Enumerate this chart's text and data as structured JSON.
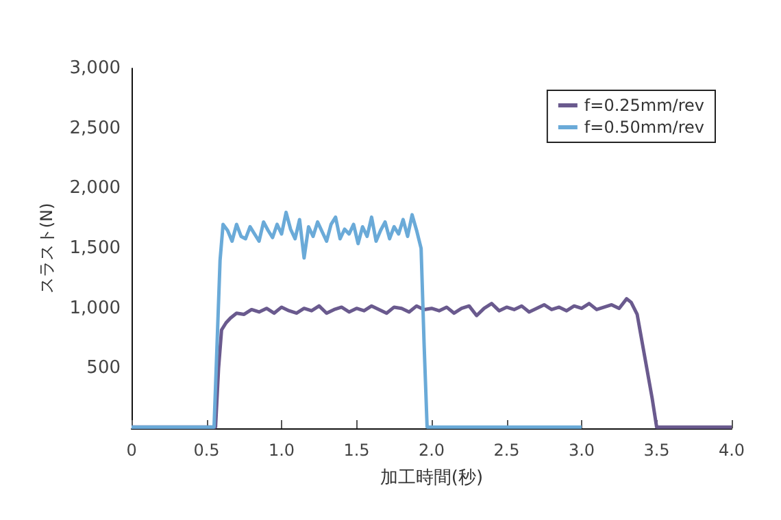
{
  "chart_data": {
    "type": "line",
    "xlabel": "加工時間(秒)",
    "ylabel": "スラスト(N)",
    "xlim": [
      0,
      4.0
    ],
    "xticks": [
      0,
      {
        "value": 0.5,
        "label": "0.5"
      },
      {
        "value": 1,
        "label": "1.0"
      },
      {
        "value": 1.5,
        "label": "1.5"
      },
      {
        "value": 2,
        "label": "2.0"
      },
      {
        "value": 2.5,
        "label": "2.5"
      },
      {
        "value": 3,
        "label": "3.0"
      },
      {
        "value": 3.5,
        "label": "3.5"
      },
      {
        "value": 4,
        "label": "4.0"
      }
    ],
    "ylim": [
      0,
      3000
    ],
    "yticks": [
      {
        "value": 500,
        "label": "500"
      },
      {
        "value": 1000,
        "label": "1,000"
      },
      {
        "value": 1500,
        "label": "1,500"
      },
      {
        "value": 2000,
        "label": "2,000"
      },
      {
        "value": 2500,
        "label": "2,500"
      },
      {
        "value": 3000,
        "label": "3,000"
      }
    ],
    "legend": "top right",
    "grid": false,
    "marker": "none",
    "line_style": "solid",
    "series": [
      {
        "name": "f=0.25mm/rev",
        "color": "#6a5a8e",
        "x": [
          0,
          0.56,
          0.58,
          0.6,
          0.63,
          0.66,
          0.7,
          0.75,
          0.8,
          0.85,
          0.9,
          0.95,
          1.0,
          1.05,
          1.1,
          1.15,
          1.2,
          1.25,
          1.3,
          1.35,
          1.4,
          1.45,
          1.5,
          1.55,
          1.6,
          1.65,
          1.7,
          1.75,
          1.8,
          1.85,
          1.9,
          1.95,
          2.0,
          2.05,
          2.1,
          2.15,
          2.2,
          2.25,
          2.3,
          2.35,
          2.4,
          2.45,
          2.5,
          2.55,
          2.6,
          2.65,
          2.7,
          2.75,
          2.8,
          2.85,
          2.9,
          2.95,
          3.0,
          3.05,
          3.1,
          3.15,
          3.2,
          3.25,
          3.3,
          3.33,
          3.37,
          3.42,
          3.47,
          3.5,
          4.0
        ],
        "values": [
          10,
          10,
          500,
          820,
          880,
          920,
          960,
          950,
          990,
          970,
          1000,
          960,
          1010,
          980,
          960,
          1000,
          980,
          1020,
          960,
          990,
          1010,
          970,
          1000,
          980,
          1020,
          990,
          960,
          1010,
          1000,
          970,
          1020,
          990,
          1000,
          980,
          1010,
          960,
          1000,
          1020,
          940,
          1000,
          1040,
          980,
          1010,
          990,
          1020,
          970,
          1000,
          1030,
          990,
          1010,
          980,
          1020,
          1000,
          1040,
          990,
          1010,
          1030,
          1000,
          1080,
          1050,
          950,
          600,
          250,
          10,
          10
        ]
      },
      {
        "name": "f=0.50mm/rev",
        "color": "#6aaad8",
        "x": [
          0,
          0.55,
          0.57,
          0.59,
          0.61,
          0.64,
          0.67,
          0.7,
          0.73,
          0.76,
          0.79,
          0.82,
          0.85,
          0.88,
          0.91,
          0.94,
          0.97,
          1.0,
          1.03,
          1.06,
          1.09,
          1.12,
          1.15,
          1.18,
          1.21,
          1.24,
          1.27,
          1.3,
          1.33,
          1.36,
          1.39,
          1.42,
          1.45,
          1.48,
          1.51,
          1.54,
          1.57,
          1.6,
          1.63,
          1.66,
          1.69,
          1.72,
          1.75,
          1.78,
          1.81,
          1.84,
          1.87,
          1.9,
          1.93,
          1.95,
          1.97,
          3.0
        ],
        "values": [
          10,
          10,
          700,
          1400,
          1700,
          1650,
          1560,
          1700,
          1600,
          1580,
          1680,
          1620,
          1560,
          1720,
          1650,
          1590,
          1700,
          1620,
          1800,
          1660,
          1580,
          1740,
          1420,
          1680,
          1600,
          1720,
          1640,
          1560,
          1700,
          1760,
          1580,
          1660,
          1620,
          1700,
          1540,
          1680,
          1600,
          1760,
          1560,
          1650,
          1720,
          1580,
          1680,
          1620,
          1740,
          1600,
          1780,
          1650,
          1500,
          700,
          10,
          10
        ]
      }
    ]
  }
}
